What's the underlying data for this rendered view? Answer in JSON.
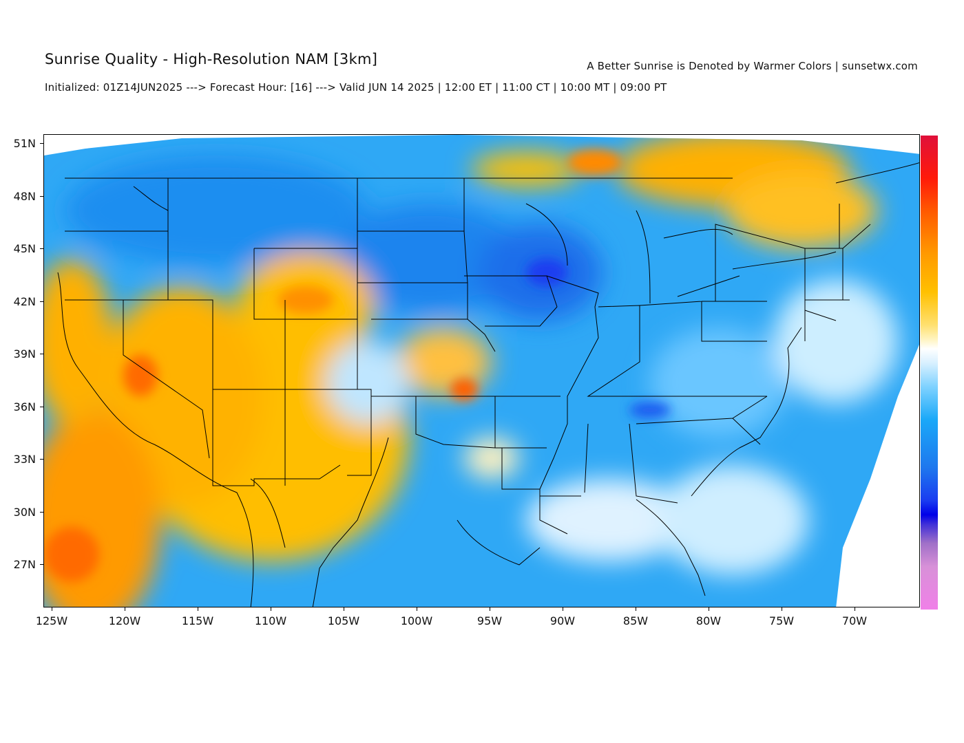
{
  "header": {
    "title": "Sunrise Quality - High-Resolution NAM [3km]",
    "subtitle": "Initialized: 01Z14JUN2025 ---> Forecast Hour: [16] ---> Valid JUN 14 2025 | 12:00 ET | 11:00 CT | 10:00 MT | 09:00 PT",
    "credit": "A Better Sunrise is Denoted by Warmer Colors | sunsetwx.com"
  },
  "map": {
    "region": "Contiguous United States",
    "lat_labels": [
      "51N",
      "48N",
      "45N",
      "42N",
      "39N",
      "36N",
      "33N",
      "30N",
      "27N"
    ],
    "lon_labels": [
      "125W",
      "120W",
      "115W",
      "110W",
      "105W",
      "100W",
      "95W",
      "90W",
      "85W",
      "80W",
      "75W",
      "70W"
    ],
    "colors": {
      "poor": "#1e78ee",
      "fair": "#7fd2ff",
      "neutral": "#ffffff",
      "good": "#ffc000",
      "great": "#ff5a00",
      "best": "#e0103a"
    }
  },
  "colorbar": {
    "top_color": "#e0103a",
    "bottom_color": "#f080e8"
  }
}
